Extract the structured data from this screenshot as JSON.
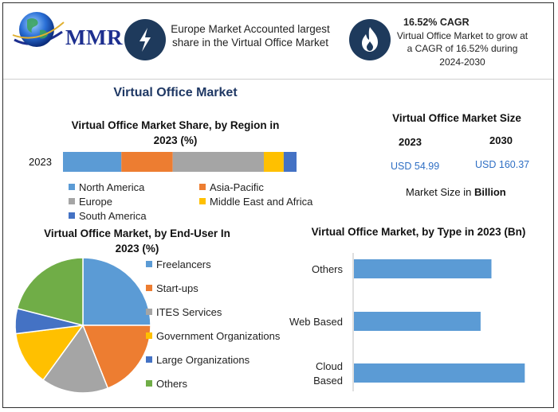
{
  "logo": {
    "text": "MMR",
    "icon": "globe-icon"
  },
  "header": {
    "box1": {
      "icon": "lightning-icon",
      "text": "Europe Market Accounted largest share in the Virtual Office Market"
    },
    "box2": {
      "icon": "flame-icon",
      "title": "16.52% CAGR",
      "text": "Virtual Office Market to grow at a CAGR of 16.52% during 2024-2030"
    }
  },
  "main_title": "Virtual Office Market",
  "market_size": {
    "title": "Virtual Office Market Size",
    "years": [
      "2023",
      "2030"
    ],
    "values": [
      "USD 54.99",
      "USD 160.37"
    ],
    "note_prefix": "Market Size in ",
    "note_unit": "Billion"
  },
  "colors": {
    "north_america": "#5b9bd5",
    "asia_pacific": "#ed7d31",
    "europe": "#a5a5a5",
    "mea": "#ffc000",
    "south_america": "#4472c4",
    "others": "#70ad47",
    "bar": "#5b9bd5"
  },
  "chart_data": [
    {
      "type": "bar",
      "orientation": "horizontal-stacked",
      "title": "Virtual Office Market Share, by Region in 2023 (%)",
      "categories": [
        "2023"
      ],
      "series": [
        {
          "name": "North America",
          "values": [
            25
          ]
        },
        {
          "name": "Asia-Pacific",
          "values": [
            22
          ]
        },
        {
          "name": "Europe",
          "values": [
            39
          ]
        },
        {
          "name": "Middle East and Africa",
          "values": [
            8.5
          ]
        },
        {
          "name": "South America",
          "values": [
            5.5
          ]
        }
      ],
      "legend": "bottom"
    },
    {
      "type": "pie",
      "title": "Virtual Office Market, by End-User In 2023 (%)",
      "labels": [
        "Freelancers",
        "Start-ups",
        "ITES Services",
        "Government Organizations",
        "Large Organizations",
        "Others"
      ],
      "values": [
        25,
        19,
        16,
        13,
        6,
        21
      ],
      "legend": "right"
    },
    {
      "type": "bar",
      "orientation": "horizontal",
      "title": "Virtual Office Market, by Type in 2023 (Bn)",
      "categories": [
        "Others",
        "Web Based",
        "Cloud Based"
      ],
      "category_lines": [
        [
          "Others"
        ],
        [
          "Web Based"
        ],
        [
          "Cloud",
          "Based"
        ]
      ],
      "values": [
        16.5,
        15.2,
        20.5
      ],
      "xlim": [
        0,
        22
      ]
    }
  ]
}
